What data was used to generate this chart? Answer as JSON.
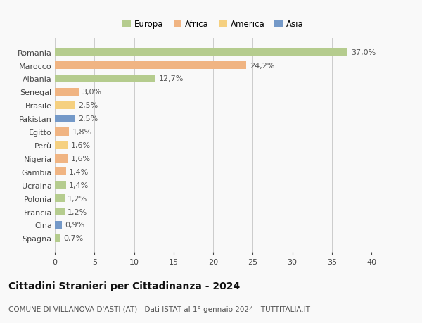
{
  "countries": [
    "Romania",
    "Marocco",
    "Albania",
    "Senegal",
    "Brasile",
    "Pakistan",
    "Egitto",
    "Perù",
    "Nigeria",
    "Gambia",
    "Ucraina",
    "Polonia",
    "Francia",
    "Cina",
    "Spagna"
  ],
  "values": [
    37.0,
    24.2,
    12.7,
    3.0,
    2.5,
    2.5,
    1.8,
    1.6,
    1.6,
    1.4,
    1.4,
    1.2,
    1.2,
    0.9,
    0.7
  ],
  "labels": [
    "37,0%",
    "24,2%",
    "12,7%",
    "3,0%",
    "2,5%",
    "2,5%",
    "1,8%",
    "1,6%",
    "1,6%",
    "1,4%",
    "1,4%",
    "1,2%",
    "1,2%",
    "0,9%",
    "0,7%"
  ],
  "colors": [
    "#b5cc8e",
    "#f0b482",
    "#b5cc8e",
    "#f0b482",
    "#f5d080",
    "#7499c8",
    "#f0b482",
    "#f5d080",
    "#f0b482",
    "#f0b482",
    "#b5cc8e",
    "#b5cc8e",
    "#b5cc8e",
    "#7499c8",
    "#b5cc8e"
  ],
  "legend_labels": [
    "Europa",
    "Africa",
    "America",
    "Asia"
  ],
  "legend_colors": [
    "#b5cc8e",
    "#f0b482",
    "#f5d080",
    "#7499c8"
  ],
  "xlim": [
    0,
    40
  ],
  "xticks": [
    0,
    5,
    10,
    15,
    20,
    25,
    30,
    35,
    40
  ],
  "title": "Cittadini Stranieri per Cittadinanza - 2024",
  "subtitle": "COMUNE DI VILLANOVA D'ASTI (AT) - Dati ISTAT al 1° gennaio 2024 - TUTTITALIA.IT",
  "background_color": "#f9f9f9",
  "bar_height": 0.6,
  "grid_color": "#cccccc",
  "tick_fontsize": 8,
  "label_fontsize": 8,
  "legend_fontsize": 8.5,
  "title_fontsize": 10,
  "subtitle_fontsize": 7.5
}
